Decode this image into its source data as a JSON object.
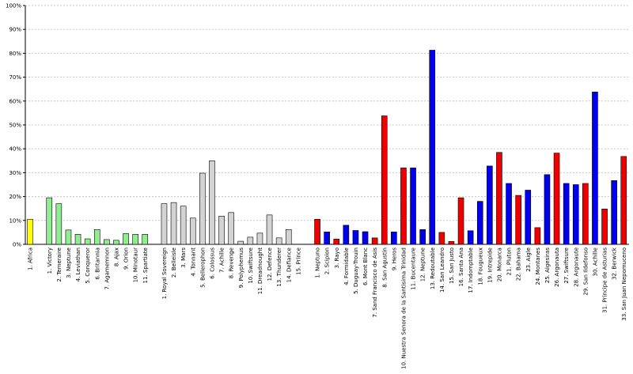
{
  "chart_data": {
    "type": "bar",
    "ylim": [
      0,
      100
    ],
    "y_ticks": [
      "0%",
      "10%",
      "20%",
      "30%",
      "40%",
      "50%",
      "60%",
      "70%",
      "80%",
      "90%",
      "100%"
    ],
    "grid": "horizontal dashed",
    "colors": {
      "yellow": "#ffff00",
      "green": "#90ee90",
      "gray": "#d3d3d3",
      "red": "#ee0000",
      "blue": "#0000ee",
      "outline": "#000000"
    },
    "groups": [
      {
        "name": "group-1",
        "color": "yellow",
        "categories": [
          "1. Africa"
        ],
        "values": [
          10.5
        ]
      },
      {
        "name": "group-2",
        "color": "green",
        "categories": [
          "1. Victory",
          "2. Temeraire",
          "3. Neptune",
          "4. Leviathan",
          "5. Conqueror",
          "6. Britannia",
          "7. Agamemnon",
          "8. Ajax",
          "9. Orion",
          "10. Minotaur",
          "11. Spartiate"
        ],
        "values": [
          19.5,
          17.0,
          6.0,
          4.2,
          2.3,
          6.2,
          2.0,
          1.7,
          4.5,
          4.2,
          4.2
        ]
      },
      {
        "name": "group-3",
        "color": "gray",
        "categories": [
          "1. Royal Sovereign",
          "2. Belleisle",
          "3. Mars",
          "4. Tonnant",
          "5. Bellerophon",
          "6. Colossus",
          "7. Achille",
          "8. Revenge",
          "9. Polyphemus",
          "10. Swiftsure",
          "11. Dreadnought",
          "12. Defence",
          "13. Thunderer",
          "14. Defiance",
          "15. Prince"
        ],
        "values": [
          17.0,
          17.5,
          16.0,
          11.0,
          29.8,
          35.0,
          11.8,
          13.3,
          1.3,
          3.0,
          4.7,
          12.3,
          2.7,
          6.2,
          0
        ]
      },
      {
        "name": "group-4",
        "colors": [
          "red",
          "blue",
          "red",
          "blue",
          "blue",
          "blue",
          "red",
          "red",
          "blue",
          "red",
          "blue",
          "blue",
          "blue",
          "red",
          "red",
          "red",
          "blue",
          "blue",
          "blue",
          "red",
          "blue",
          "red",
          "blue",
          "red",
          "blue",
          "red",
          "blue",
          "blue",
          "red",
          "blue",
          "red",
          "blue",
          "red"
        ],
        "categories": [
          "1. Neptuno",
          "2. Scipion",
          "3. Rayo",
          "4. Formidable",
          "5. Duguay-Trouin",
          "6. Mont Blanc",
          "7. Sand Francisco de Asis",
          "8. San Agustín",
          "9. Heros",
          "10. Nuestra Senora de la Santisima Trinidad",
          "11. Bucentaure",
          "12. Neptune",
          "13. Redoutable",
          "14. San Leandro",
          "15. San Justo",
          "16. Santa Ana",
          "17. Indomptable",
          "18. Fougueux",
          "19. Intrepide",
          "20. Monarca",
          "21. Pluton",
          "22. Bahama",
          "23. Aigle",
          "24. Montanes",
          "25. Algesiras",
          "26. Argonauta",
          "27. Swiftsure",
          "28. Argonaute",
          "29. San Ildefonso",
          "30. Achille",
          "31. Principe de Asturias",
          "32. Berwick",
          "33. San Juan Nepomuceno"
        ],
        "values": [
          10.5,
          5.2,
          2.2,
          8.0,
          5.8,
          5.3,
          2.7,
          53.8,
          5.2,
          32.0,
          32.0,
          6.2,
          81.3,
          5.0,
          1.2,
          19.5,
          5.7,
          18.0,
          32.8,
          38.5,
          25.5,
          20.5,
          22.7,
          7.0,
          29.2,
          38.2,
          25.5,
          25.0,
          25.5,
          63.8,
          14.8,
          26.7,
          36.8
        ]
      }
    ]
  }
}
